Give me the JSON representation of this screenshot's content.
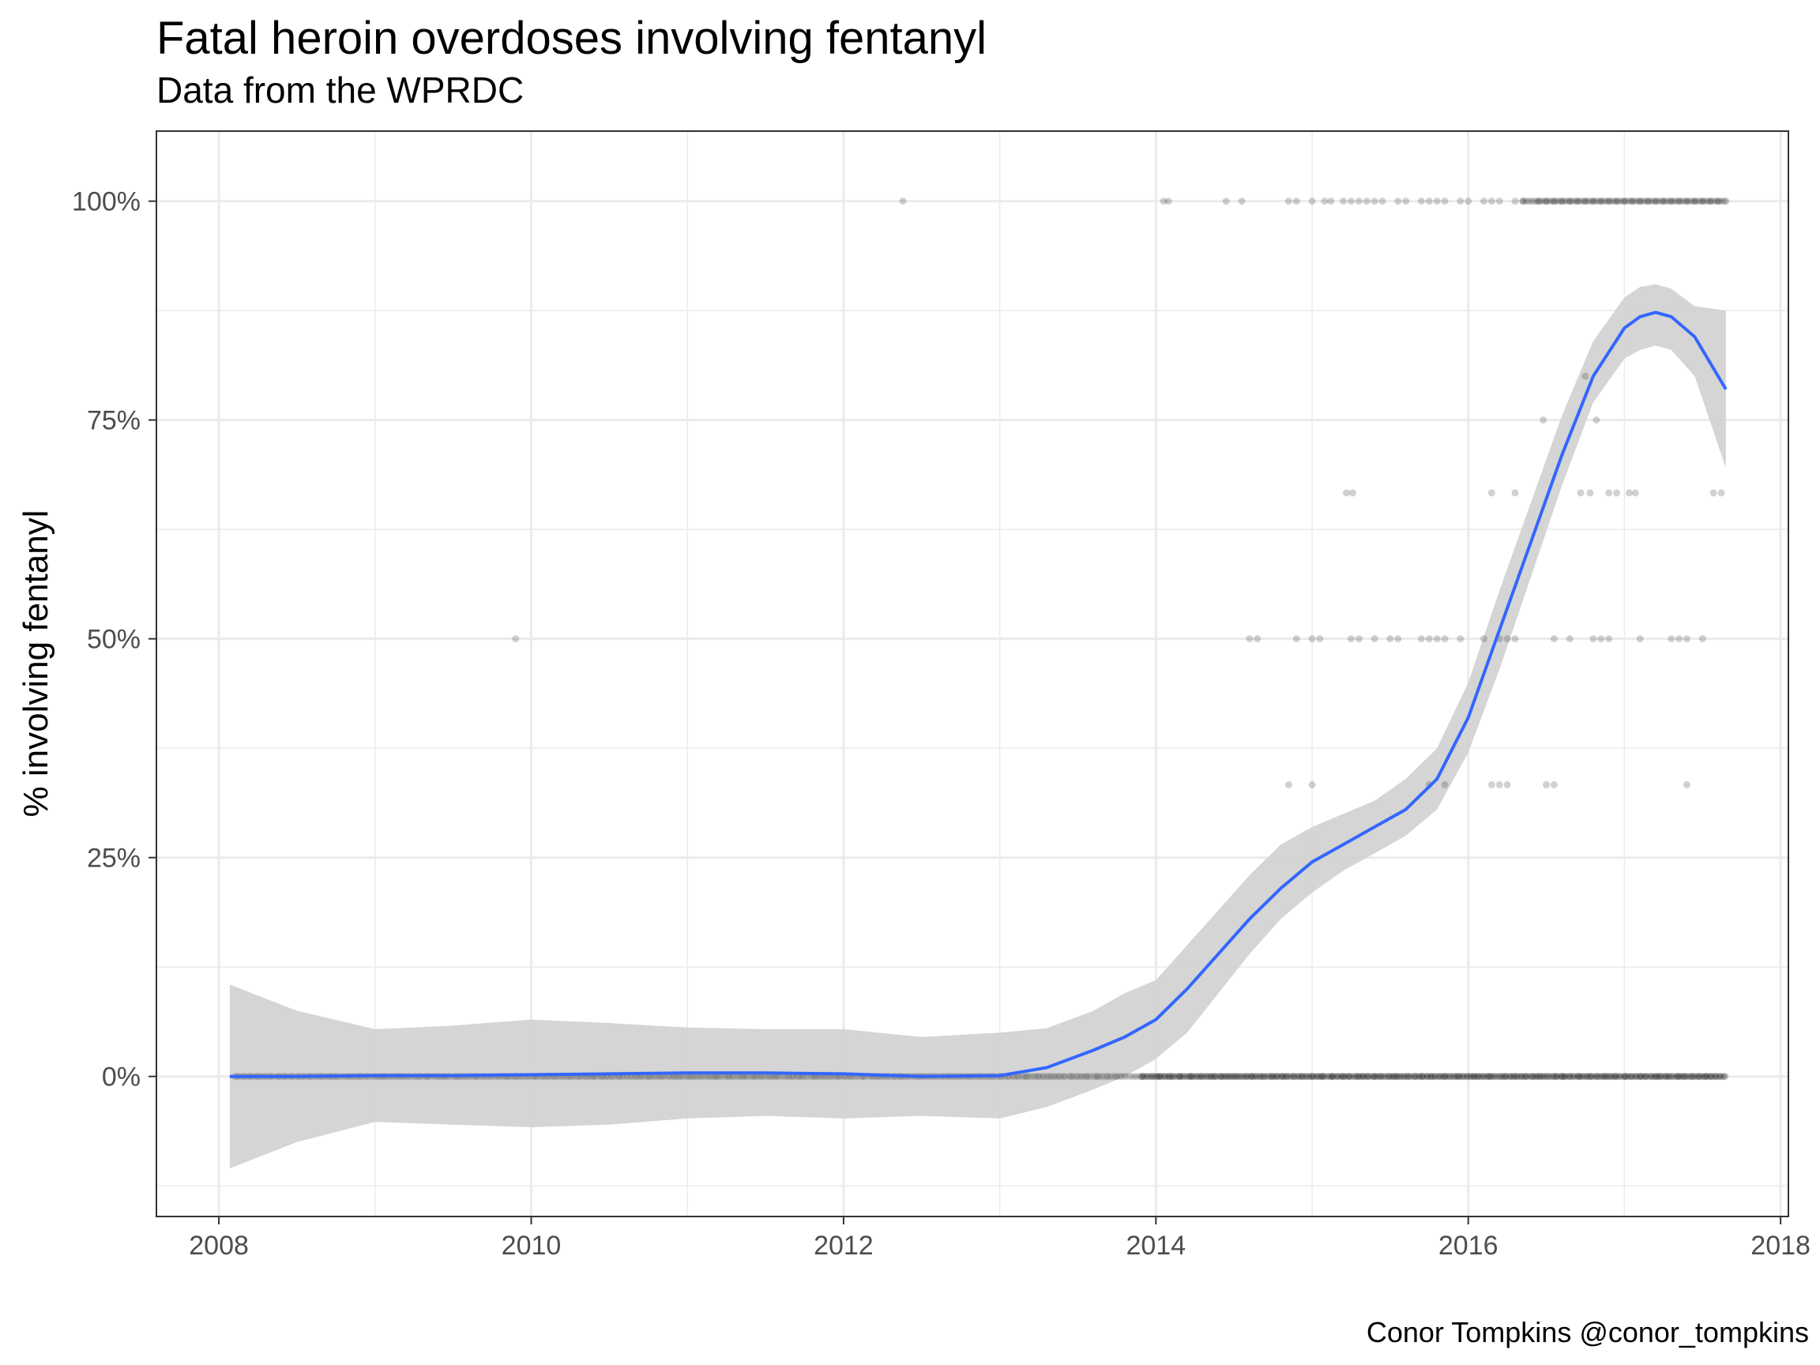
{
  "chart_data": {
    "type": "scatter",
    "title": "Fatal heroin overdoses involving fentanyl",
    "subtitle": "Data from the WPRDC",
    "caption": "Conor Tompkins @conor_tompkins",
    "xlabel": "",
    "ylabel": "% involving fentanyl",
    "xlim": [
      2007.6,
      2018.05
    ],
    "ylim": [
      -0.16,
      1.08
    ],
    "x_ticks": [
      "2008",
      "2010",
      "2012",
      "2014",
      "2016",
      "2018"
    ],
    "y_ticks": [
      "0%",
      "25%",
      "50%",
      "75%",
      "100%"
    ],
    "grid": true,
    "legend": "none",
    "colors": {
      "points": "#000000",
      "smooth_line": "#3366ff",
      "ribbon": "#d3d3d3",
      "grid": "#ebebeb",
      "panel_border": "#333333"
    },
    "series": [
      {
        "type": "scatter",
        "x": [
          2009.9,
          2012.38,
          2014.05,
          2014.08,
          2014.45,
          2014.55,
          2014.85,
          2014.9,
          2015.0,
          2015.08,
          2015.12,
          2015.2,
          2015.25,
          2015.3,
          2015.35,
          2015.4,
          2015.45,
          2015.55,
          2015.6,
          2015.7,
          2015.75,
          2015.8,
          2015.85,
          2015.95,
          2016.0,
          2016.1,
          2016.15,
          2016.2,
          2016.3,
          2016.35,
          2016.45,
          2016.5,
          2016.55,
          2016.6,
          2016.65,
          2016.7,
          2016.75,
          2016.8,
          2016.85,
          2016.9,
          2016.95,
          2017.0,
          2017.05,
          2017.1,
          2017.15,
          2017.2,
          2017.25,
          2017.3,
          2017.35,
          2017.4,
          2017.45,
          2017.5,
          2017.55,
          2017.6,
          2017.65,
          2014.6,
          2014.65,
          2014.9,
          2015.0,
          2015.05,
          2015.25,
          2015.3,
          2015.4,
          2015.5,
          2015.55,
          2015.7,
          2015.75,
          2015.8,
          2015.85,
          2015.95,
          2016.1,
          2016.2,
          2016.25,
          2016.3,
          2016.55,
          2016.65,
          2016.8,
          2016.85,
          2016.9,
          2017.1,
          2017.3,
          2017.35,
          2017.4,
          2017.5,
          2014.85,
          2015.0,
          2015.75,
          2015.85,
          2016.15,
          2016.2,
          2016.25,
          2016.5,
          2016.55,
          2017.4,
          2015.22,
          2015.26,
          2016.15,
          2016.3,
          2016.72,
          2016.78,
          2016.9,
          2016.95,
          2017.03,
          2017.07,
          2017.57,
          2017.62,
          2016.48,
          2016.75,
          2016.82
        ],
        "y": [
          0.5,
          1.0,
          1.0,
          1.0,
          1.0,
          1.0,
          1.0,
          1.0,
          1.0,
          1.0,
          1.0,
          1.0,
          1.0,
          1.0,
          1.0,
          1.0,
          1.0,
          1.0,
          1.0,
          1.0,
          1.0,
          1.0,
          1.0,
          1.0,
          1.0,
          1.0,
          1.0,
          1.0,
          1.0,
          1.0,
          1.0,
          1.0,
          1.0,
          1.0,
          1.0,
          1.0,
          1.0,
          1.0,
          1.0,
          1.0,
          1.0,
          1.0,
          1.0,
          1.0,
          1.0,
          1.0,
          1.0,
          1.0,
          1.0,
          1.0,
          1.0,
          1.0,
          1.0,
          1.0,
          1.0,
          0.5,
          0.5,
          0.5,
          0.5,
          0.5,
          0.5,
          0.5,
          0.5,
          0.5,
          0.5,
          0.5,
          0.5,
          0.5,
          0.5,
          0.5,
          0.5,
          0.5,
          0.5,
          0.5,
          0.5,
          0.5,
          0.5,
          0.5,
          0.5,
          0.5,
          0.5,
          0.5,
          0.5,
          0.5,
          0.3333,
          0.3333,
          0.3333,
          0.3333,
          0.3333,
          0.3333,
          0.3333,
          0.3333,
          0.3333,
          0.3333,
          0.6667,
          0.6667,
          0.6667,
          0.6667,
          0.6667,
          0.6667,
          0.6667,
          0.6667,
          0.6667,
          0.6667,
          0.6667,
          0.6667,
          0.75,
          0.8,
          0.75
        ],
        "zero_value_points_x_range": [
          2008.1,
          2017.65
        ]
      },
      {
        "type": "line",
        "x": [
          2008.07,
          2008.5,
          2009.0,
          2009.5,
          2010.0,
          2010.5,
          2011.0,
          2011.5,
          2012.0,
          2012.5,
          2013.0,
          2013.3,
          2013.6,
          2013.8,
          2014.0,
          2014.2,
          2014.4,
          2014.6,
          2014.8,
          2015.0,
          2015.2,
          2015.4,
          2015.6,
          2015.8,
          2016.0,
          2016.2,
          2016.4,
          2016.6,
          2016.8,
          2017.0,
          2017.1,
          2017.2,
          2017.3,
          2017.45,
          2017.65
        ],
        "y": [
          0.0,
          0.0,
          0.001,
          0.001,
          0.002,
          0.003,
          0.004,
          0.004,
          0.003,
          0.0,
          0.001,
          0.01,
          0.03,
          0.045,
          0.065,
          0.1,
          0.14,
          0.18,
          0.215,
          0.245,
          0.265,
          0.285,
          0.305,
          0.34,
          0.41,
          0.51,
          0.61,
          0.71,
          0.8,
          0.855,
          0.868,
          0.873,
          0.868,
          0.845,
          0.785
        ],
        "ci_low": [
          -0.105,
          -0.075,
          -0.052,
          -0.055,
          -0.058,
          -0.055,
          -0.048,
          -0.045,
          -0.048,
          -0.045,
          -0.048,
          -0.035,
          -0.015,
          0.0,
          0.02,
          0.05,
          0.095,
          0.14,
          0.18,
          0.21,
          0.235,
          0.255,
          0.275,
          0.305,
          0.37,
          0.465,
          0.57,
          0.675,
          0.77,
          0.82,
          0.83,
          0.835,
          0.83,
          0.8,
          0.695
        ],
        "ci_high": [
          0.105,
          0.075,
          0.054,
          0.058,
          0.065,
          0.061,
          0.056,
          0.054,
          0.054,
          0.045,
          0.05,
          0.055,
          0.075,
          0.095,
          0.11,
          0.15,
          0.19,
          0.23,
          0.265,
          0.285,
          0.3,
          0.315,
          0.34,
          0.375,
          0.45,
          0.555,
          0.655,
          0.755,
          0.84,
          0.89,
          0.902,
          0.905,
          0.9,
          0.88,
          0.875
        ]
      }
    ]
  }
}
